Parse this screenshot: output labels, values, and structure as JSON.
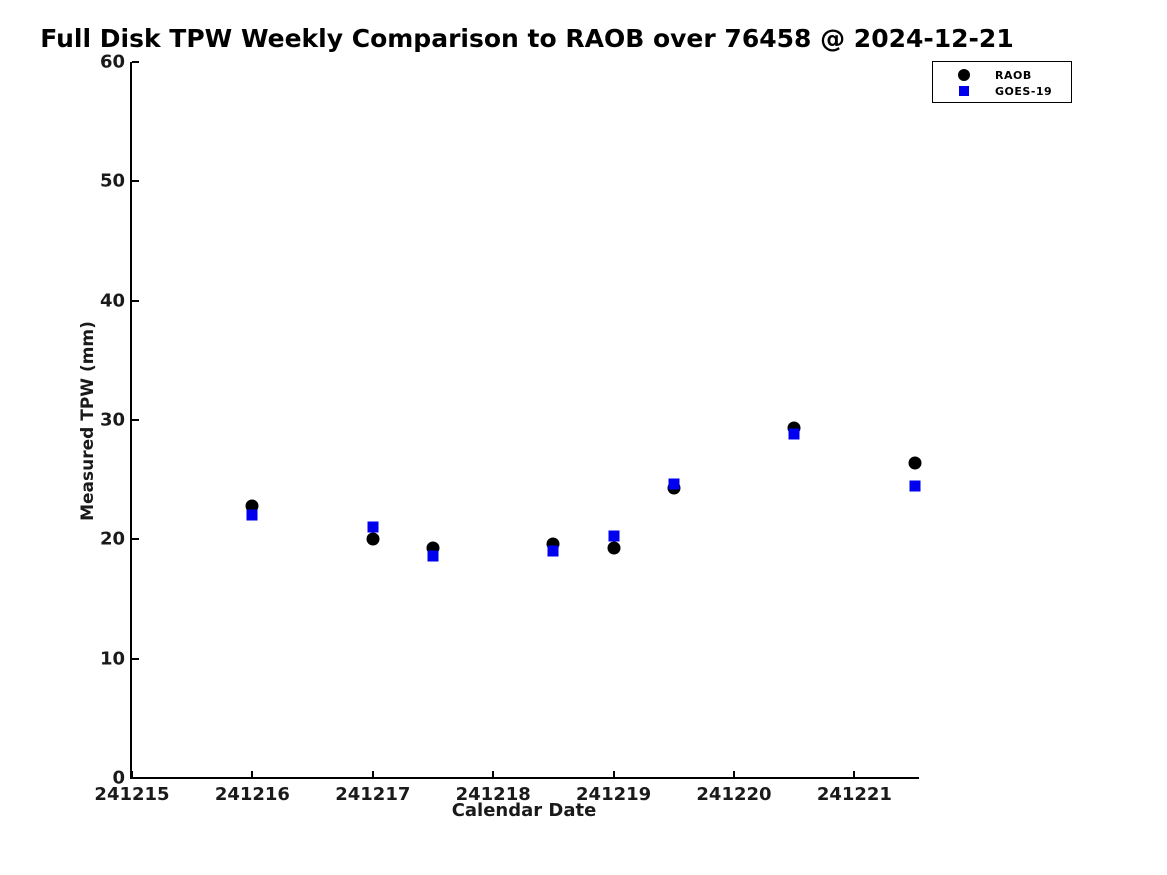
{
  "title": "Full Disk TPW Weekly Comparison to RAOB over 76458 @ 2024-12-21",
  "colors": {
    "background": "#ffffff",
    "axis": "#000000",
    "raob": "#000000",
    "goes19": "#0000ee"
  },
  "chart_data": {
    "type": "scatter",
    "title": "Full Disk TPW Weekly Comparison to RAOB over 76458 @ 2024-12-21",
    "xlabel": "Calendar Date",
    "ylabel": "Measured TPW (mm)",
    "xlim": [
      241215,
      241221.52
    ],
    "ylim": [
      0,
      60
    ],
    "x_ticks": [
      241215,
      241216,
      241217,
      241218,
      241219,
      241220,
      241221
    ],
    "y_ticks": [
      0,
      10,
      20,
      30,
      40,
      50,
      60
    ],
    "grid": false,
    "legend_position": "top-right",
    "series": [
      {
        "name": "RAOB",
        "marker": "circle",
        "color": "#000000",
        "points": [
          [
            241216.0,
            22.8
          ],
          [
            241217.0,
            20.0
          ],
          [
            241217.5,
            19.3
          ],
          [
            241218.5,
            19.6
          ],
          [
            241219.0,
            19.3
          ],
          [
            241219.5,
            24.3
          ],
          [
            241220.5,
            29.3
          ],
          [
            241221.5,
            26.4
          ]
        ]
      },
      {
        "name": "GOES-19",
        "marker": "square",
        "color": "#0000ee",
        "points": [
          [
            241216.0,
            22.0
          ],
          [
            241217.0,
            21.0
          ],
          [
            241217.5,
            18.6
          ],
          [
            241218.5,
            19.0
          ],
          [
            241219.0,
            20.3
          ],
          [
            241219.5,
            24.6
          ],
          [
            241220.5,
            28.8
          ],
          [
            241221.5,
            24.5
          ]
        ]
      }
    ]
  }
}
